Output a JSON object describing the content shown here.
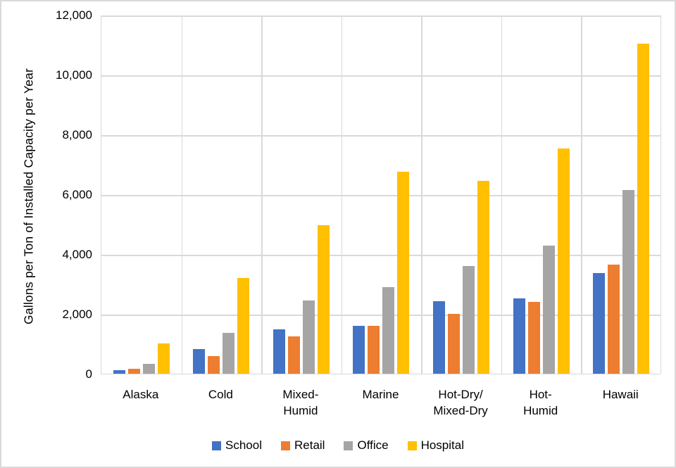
{
  "chart_data": {
    "type": "bar",
    "title": "",
    "xlabel": "",
    "ylabel": "Gallons per Ton of Installed Capacity per Year",
    "ylim": [
      0,
      12000
    ],
    "ytick_interval": 2000,
    "yticks": [
      "0",
      "2,000",
      "4,000",
      "6,000",
      "8,000",
      "10,000",
      "12,000"
    ],
    "grid": true,
    "legend_position": "bottom",
    "categories": [
      "Alaska",
      "Cold",
      "Mixed-\nHumid",
      "Marine",
      "Hot-Dry/\nMixed-Dry",
      "Hot-\nHumid",
      "Hawaii"
    ],
    "series": [
      {
        "name": "School",
        "color": "#4472C4",
        "values": [
          120,
          830,
          1490,
          1610,
          2420,
          2520,
          3370
        ]
      },
      {
        "name": "Retail",
        "color": "#ED7D31",
        "values": [
          160,
          600,
          1240,
          1600,
          2000,
          2410,
          3650
        ]
      },
      {
        "name": "Office",
        "color": "#A5A5A5",
        "values": [
          330,
          1360,
          2450,
          2890,
          3610,
          4280,
          6150
        ]
      },
      {
        "name": "Hospital",
        "color": "#FFC000",
        "values": [
          1010,
          3200,
          4970,
          6760,
          6450,
          7540,
          11040
        ]
      }
    ]
  },
  "style": {
    "gridline_color": "#d9d9d9",
    "axis_color": "#d9d9d9",
    "background": "#ffffff",
    "text_color": "#000000"
  }
}
